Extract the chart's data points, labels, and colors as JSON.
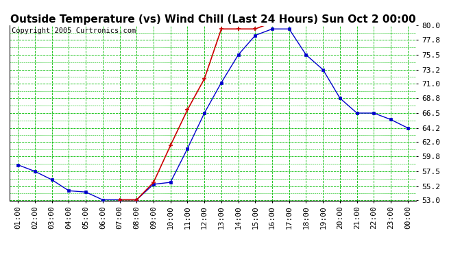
{
  "title": "Outside Temperature (vs) Wind Chill (Last 24 Hours) Sun Oct 2 00:00",
  "copyright": "Copyright 2005 Curtronics.com",
  "x_labels": [
    "01:00",
    "02:00",
    "03:00",
    "04:00",
    "05:00",
    "06:00",
    "07:00",
    "08:00",
    "09:00",
    "10:00",
    "11:00",
    "12:00",
    "13:00",
    "14:00",
    "15:00",
    "16:00",
    "17:00",
    "18:00",
    "19:00",
    "20:00",
    "21:00",
    "22:00",
    "23:00",
    "00:00"
  ],
  "ylim": [
    53.0,
    80.0
  ],
  "yticks": [
    53.0,
    55.2,
    57.5,
    59.8,
    62.0,
    64.2,
    66.5,
    68.8,
    71.0,
    73.2,
    75.5,
    77.8,
    80.0
  ],
  "outside_temp": [
    58.5,
    57.5,
    56.2,
    54.5,
    54.3,
    53.1,
    53.1,
    53.1,
    55.5,
    55.8,
    61.0,
    66.5,
    71.2,
    75.5,
    78.5,
    79.5,
    79.5,
    75.5,
    73.2,
    68.8,
    66.5,
    66.5,
    65.5,
    64.2
  ],
  "wind_chill": [
    null,
    null,
    null,
    null,
    null,
    null,
    53.1,
    53.1,
    55.8,
    61.5,
    67.0,
    71.8,
    79.5,
    79.5,
    79.5,
    80.5,
    80.7,
    null,
    null,
    null,
    null,
    null,
    null,
    null
  ],
  "temp_color": "#0000cc",
  "wind_color": "#cc0000",
  "bg_color": "#ffffff",
  "grid_color": "#00bb00",
  "title_fontsize": 11,
  "copyright_fontsize": 7.5,
  "tick_fontsize": 8,
  "figwidth": 6.9,
  "figheight": 3.75,
  "dpi": 100
}
